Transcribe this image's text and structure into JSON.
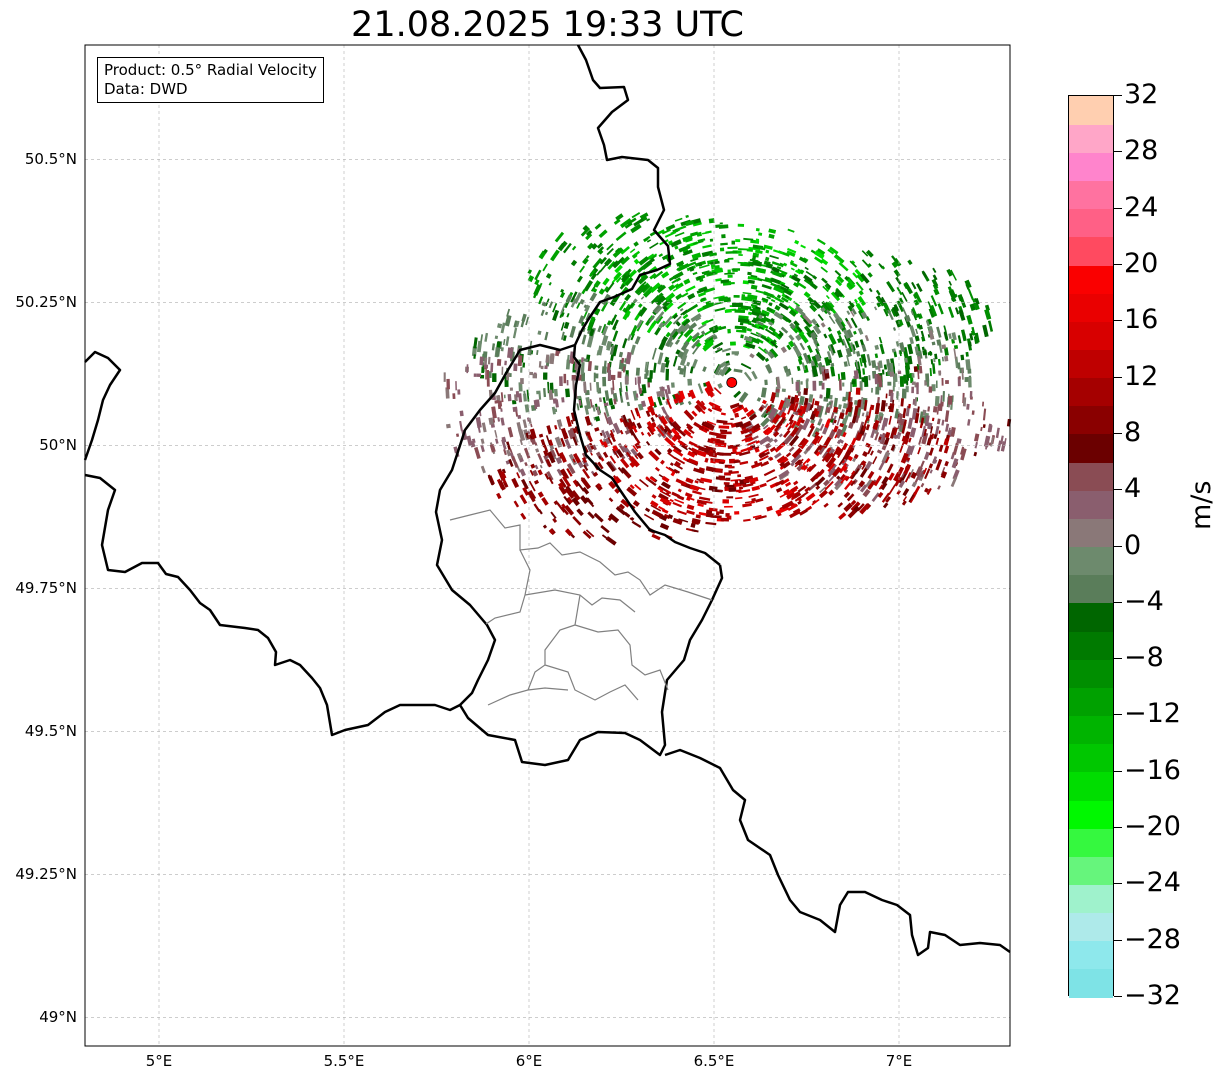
{
  "title": "21.08.2025 19:33 UTC",
  "info_box": {
    "line1": "Product: 0.5° Radial Velocity",
    "line2": "Data: DWD"
  },
  "map": {
    "lon_range": [
      4.8,
      7.3
    ],
    "lat_range": [
      48.95,
      50.7
    ],
    "lat_ticks": [
      {
        "value": 49.0,
        "label": "49°N"
      },
      {
        "value": 49.25,
        "label": "49.25°N"
      },
      {
        "value": 49.5,
        "label": "49.5°N"
      },
      {
        "value": 49.75,
        "label": "49.75°N"
      },
      {
        "value": 50.0,
        "label": "50°N"
      },
      {
        "value": 50.25,
        "label": "50.25°N"
      },
      {
        "value": 50.5,
        "label": "50.5°N"
      }
    ],
    "lon_ticks": [
      {
        "value": 5.0,
        "label": "5°E"
      },
      {
        "value": 5.5,
        "label": "5.5°E"
      },
      {
        "value": 6.0,
        "label": "6°E"
      },
      {
        "value": 6.5,
        "label": "6.5°E"
      },
      {
        "value": 7.0,
        "label": "7°E"
      }
    ],
    "grid": true,
    "radar_site": {
      "lon": 6.548,
      "lat": 50.11,
      "color": "#ff0000"
    },
    "border_color": "#000000",
    "inner_border_color": "#808080",
    "precip_sectors": [
      {
        "lon": 6.55,
        "lat": 50.28,
        "value": -14
      },
      {
        "lon": 6.35,
        "lat": 50.29,
        "value": -9
      },
      {
        "lon": 6.9,
        "lat": 50.23,
        "value": -7
      },
      {
        "lon": 6.2,
        "lat": 50.15,
        "value": -3
      },
      {
        "lon": 6.85,
        "lat": 50.14,
        "value": -2
      },
      {
        "lon": 6.05,
        "lat": 50.05,
        "value": 3
      },
      {
        "lon": 6.95,
        "lat": 50.03,
        "value": 4
      },
      {
        "lon": 6.25,
        "lat": 49.94,
        "value": 9
      },
      {
        "lon": 6.55,
        "lat": 49.98,
        "value": 14
      },
      {
        "lon": 6.8,
        "lat": 49.99,
        "value": 10
      }
    ]
  },
  "colorbar": {
    "label": "m/s",
    "min": -32,
    "max": 32,
    "ticks": [
      "32",
      "28",
      "24",
      "20",
      "16",
      "12",
      "8",
      "4",
      "0",
      "−4",
      "−8",
      "−12",
      "−16",
      "−20",
      "−24",
      "−28",
      "−32"
    ],
    "colors": [
      "#7ee3e6",
      "#8ee8ec",
      "#aeeaea",
      "#9ff2cc",
      "#66f57c",
      "#35f83f",
      "#00f800",
      "#00dd00",
      "#00c700",
      "#00b400",
      "#00a100",
      "#008e00",
      "#007a00",
      "#006600",
      "#5a7d5a",
      "#6d8a6d",
      "#8a7878",
      "#8a5e6e",
      "#8a4c54",
      "#6b0000",
      "#8a0000",
      "#a50000",
      "#bf0000",
      "#d80000",
      "#ea0000",
      "#fa0000",
      "#ff4a60",
      "#ff6086",
      "#ff72a0",
      "#ff84cc",
      "#ffa6c8",
      "#ffcfb0"
    ]
  }
}
